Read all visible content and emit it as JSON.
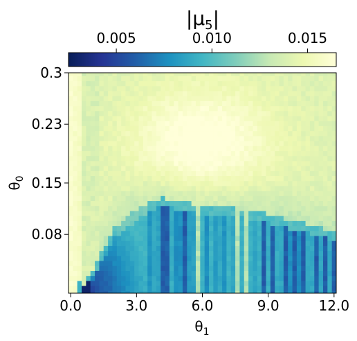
{
  "chart_data": {
    "type": "heatmap",
    "title": "",
    "xlabel": "θ1",
    "ylabel": "θ0",
    "colorbar": {
      "label": "|μ5|",
      "range": [
        0.0025,
        0.0165
      ],
      "ticks": [
        0.005,
        0.01,
        0.015
      ],
      "tick_labels": [
        "0.005",
        "0.010",
        "0.015"
      ],
      "colormap": "YlGnBu_r",
      "colors": [
        "#081d58",
        "#253494",
        "#225ea8",
        "#1d91c0",
        "#41b6c4",
        "#7fcdbb",
        "#c7e9b4",
        "#edf8b1",
        "#ffffd9"
      ]
    },
    "x_range": [
      -0.1,
      12.1
    ],
    "y_range": [
      0.0,
      0.3
    ],
    "x_ticks": [
      0.0,
      3.0,
      6.0,
      9.0,
      12.0
    ],
    "x_tick_labels": [
      "0.0",
      "3.0",
      "6.0",
      "9.0",
      "12.0"
    ],
    "y_ticks": [
      0.08,
      0.15,
      0.23,
      0.3
    ],
    "y_tick_labels": [
      "0.08",
      "0.15",
      "0.23",
      "0.3"
    ],
    "grid": {
      "nx": 61,
      "ny": 45,
      "x_start": 0.0,
      "x_step": 0.2,
      "y_start": 0.0,
      "y_step": 0.0068
    },
    "pattern": {
      "left_strip_value": 0.016,
      "upper_region_value": 0.0148,
      "bright_core": {
        "x": 6.0,
        "y": 0.21,
        "value": 0.0162
      },
      "boundary_y_at_x": [
        [
          0.4,
          0.0
        ],
        [
          2.0,
          0.09
        ],
        [
          3.2,
          0.12
        ],
        [
          4.2,
          0.13
        ],
        [
          6.0,
          0.12
        ],
        [
          8.0,
          0.115
        ],
        [
          10.0,
          0.1
        ],
        [
          12.0,
          0.085
        ]
      ],
      "lower_region_value": 0.0085,
      "dark_columns_x": [
        4.2,
        4.4,
        5.2,
        8.8,
        9.2,
        9.8,
        10.2,
        10.6,
        11.2,
        11.6,
        12.0
      ],
      "bright_columns_x": [
        5.8,
        7.6,
        8.0
      ],
      "darkest_corner": {
        "x": 0.6,
        "y": 0.01,
        "value": 0.003
      }
    }
  }
}
